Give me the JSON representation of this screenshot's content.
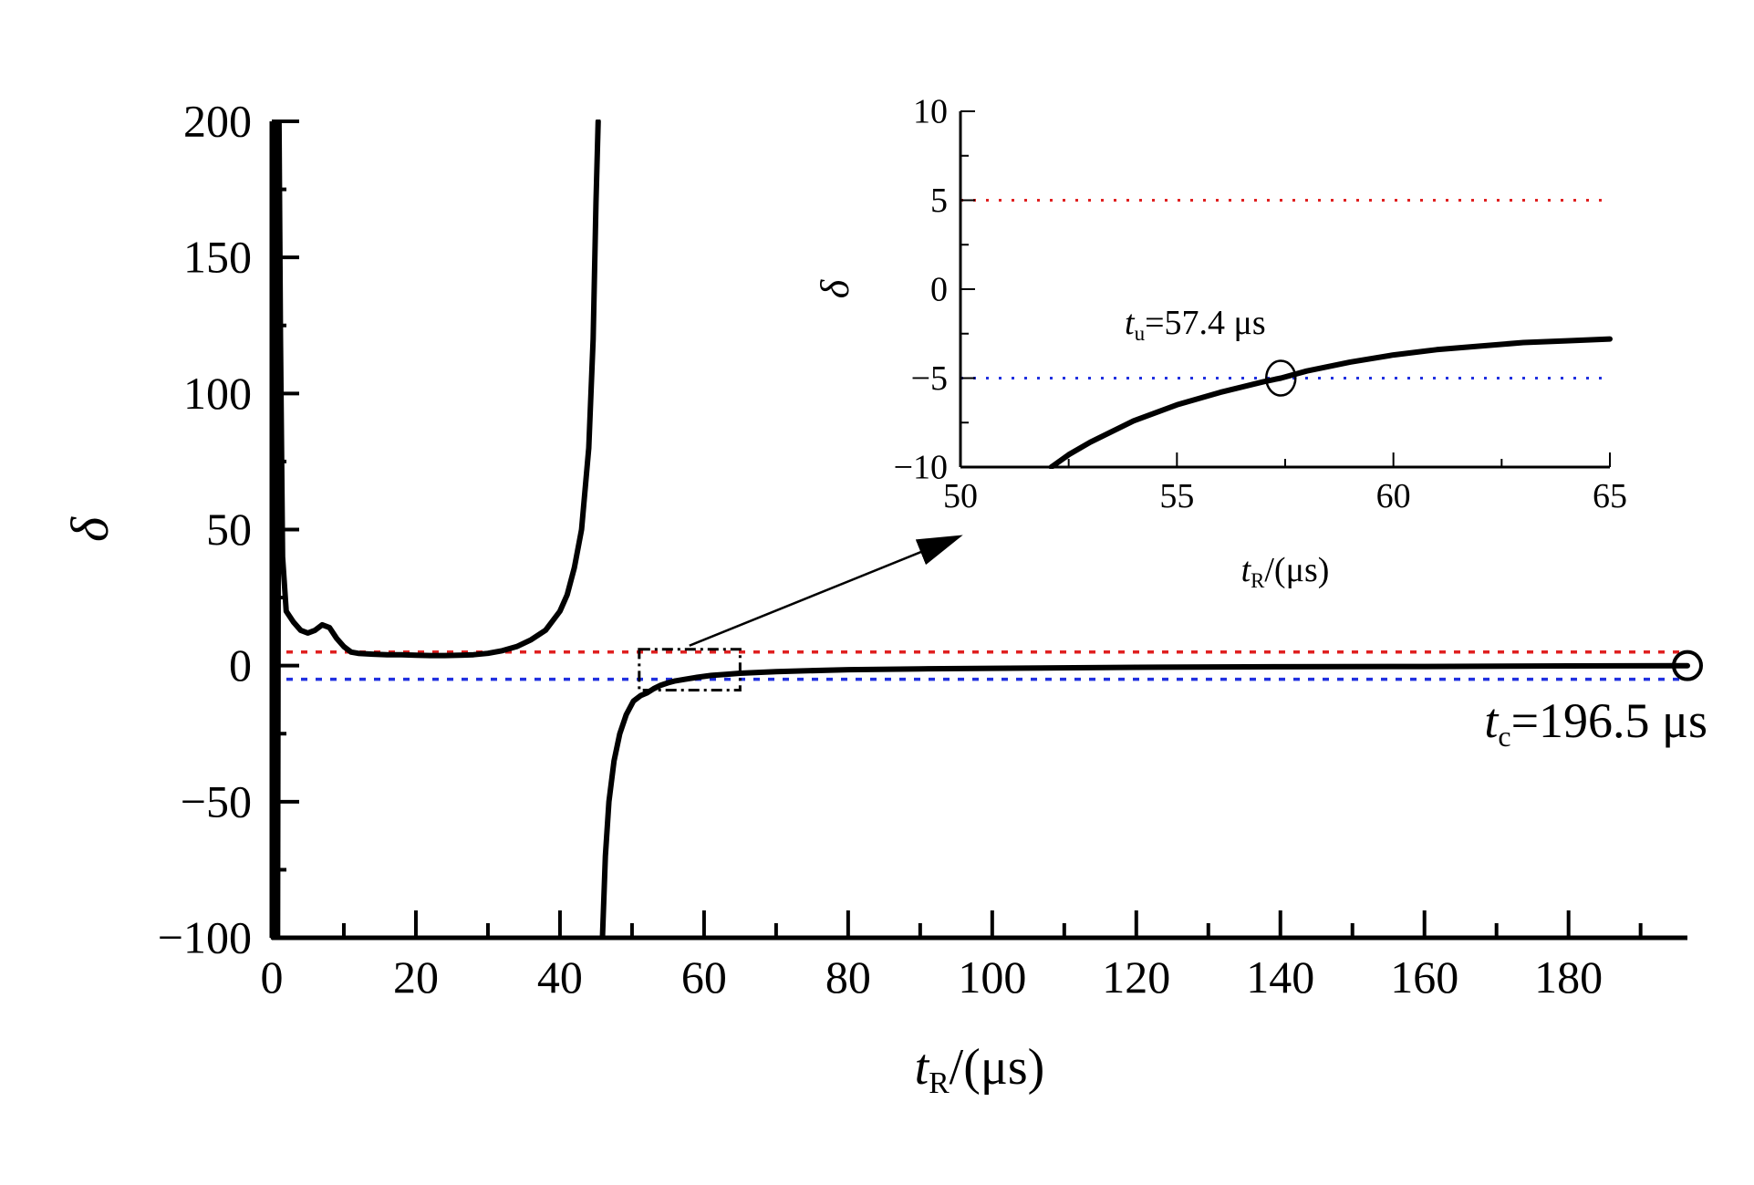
{
  "chart_data": [
    {
      "id": "main",
      "type": "line",
      "xlabel": {
        "var": "t",
        "sub": "R",
        "unit": "/(μs)"
      },
      "ylabel": "δ",
      "xlim": [
        0,
        196.5
      ],
      "ylim": [
        -100,
        200
      ],
      "xticks": [
        0,
        20,
        40,
        60,
        80,
        100,
        120,
        140,
        160,
        180
      ],
      "yticks": [
        -100,
        -50,
        0,
        50,
        100,
        150,
        200
      ],
      "ytick_labels": [
        "−100",
        "−50",
        "0",
        "50",
        "100",
        "150",
        "200"
      ],
      "thresholds": [
        {
          "name": "upper",
          "value": 5,
          "color": "#e02020"
        },
        {
          "name": "lower",
          "value": -5,
          "color": "#2030e0"
        }
      ],
      "series": [
        {
          "name": "delta-left",
          "x": [
            0.2,
            0.5,
            0.8,
            1.0,
            1.2,
            1.5,
            2,
            3,
            4,
            5,
            6,
            7,
            8,
            9,
            10,
            11,
            12,
            14,
            16,
            18,
            20,
            22,
            24,
            26,
            28,
            30,
            32,
            34,
            36,
            38,
            40,
            41,
            42,
            43,
            44,
            44.6,
            45.0,
            45.3
          ],
          "y": [
            -100,
            200,
            -100,
            200,
            120,
            40,
            20,
            16,
            13,
            12,
            13,
            15,
            14,
            10,
            7,
            5,
            4.5,
            4.2,
            4.0,
            4.0,
            3.8,
            3.7,
            3.7,
            3.8,
            4.0,
            4.5,
            5.5,
            7,
            9.5,
            13,
            20,
            26,
            36,
            50,
            80,
            120,
            170,
            200
          ]
        },
        {
          "name": "delta-right",
          "x": [
            45.9,
            46.3,
            46.8,
            47.5,
            48.3,
            49.2,
            50.2,
            51.2,
            52.1,
            53,
            54,
            55,
            56,
            57.4,
            59,
            61,
            63,
            65,
            70,
            80,
            90,
            100,
            120,
            140,
            160,
            180,
            196.5
          ],
          "y": [
            -100,
            -70,
            -50,
            -35,
            -25,
            -18,
            -13,
            -11,
            -10,
            -8.5,
            -7.2,
            -6.3,
            -5.6,
            -5.0,
            -4.3,
            -3.6,
            -3.2,
            -2.8,
            -2.2,
            -1.5,
            -1.2,
            -1.0,
            -0.6,
            -0.4,
            -0.3,
            -0.1,
            0
          ]
        }
      ],
      "annotations": [
        {
          "name": "tc",
          "var": "t",
          "sub": "c",
          "text": "=196.5 μs",
          "x": 196.5,
          "y": 0
        }
      ],
      "zoom_box": {
        "x": [
          51,
          65
        ],
        "y": [
          -9,
          6
        ]
      }
    },
    {
      "id": "inset",
      "type": "line",
      "xlabel": {
        "var": "t",
        "sub": "R",
        "unit": "/(μs)"
      },
      "ylabel": "δ",
      "xlim": [
        50,
        65
      ],
      "ylim": [
        -10,
        10
      ],
      "xticks": [
        50,
        55,
        60,
        65
      ],
      "yticks": [
        -10,
        -5,
        0,
        5,
        10
      ],
      "ytick_labels": [
        "−10",
        "−5",
        "0",
        "5",
        "10"
      ],
      "thresholds": [
        {
          "name": "upper",
          "value": 5,
          "color": "#e02020"
        },
        {
          "name": "lower",
          "value": -5,
          "color": "#2030e0"
        }
      ],
      "series": [
        {
          "name": "delta-zoom",
          "x": [
            52.1,
            52.5,
            53,
            54,
            55,
            56,
            57,
            57.4,
            58,
            59,
            60,
            61,
            62,
            63,
            64,
            65
          ],
          "y": [
            -10,
            -9.3,
            -8.6,
            -7.4,
            -6.5,
            -5.8,
            -5.2,
            -5.0,
            -4.6,
            -4.1,
            -3.7,
            -3.4,
            -3.2,
            -3.0,
            -2.9,
            -2.8
          ]
        }
      ],
      "annotations": [
        {
          "name": "tu",
          "var": "t",
          "sub": "u",
          "text": "=57.4 μs",
          "x": 57.4,
          "y": -5
        }
      ]
    }
  ]
}
